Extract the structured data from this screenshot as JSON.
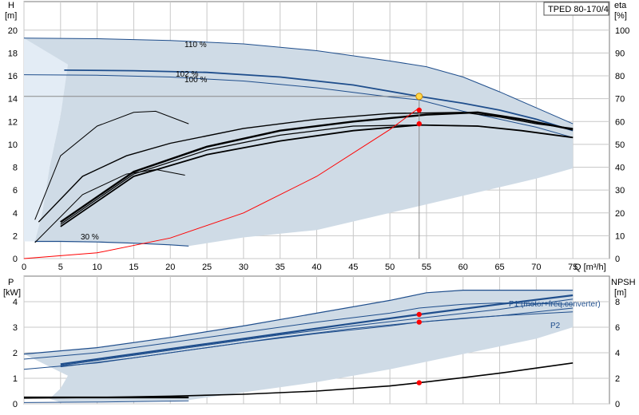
{
  "model_label": "TPED 80-170/4",
  "colors": {
    "band": "#cfdbe6",
    "band_light": "#e3ecf5",
    "blue": "#1f4e8c",
    "black": "#000000",
    "red": "#ff0000",
    "duty_fill": "#ffd84a",
    "grid": "#c8c8c8"
  },
  "chart_data": [
    {
      "type": "line",
      "panel": "head-efficiency",
      "x_axis": {
        "ticks": [
          "0",
          "5",
          "10",
          "15",
          "20",
          "25",
          "30",
          "35",
          "40",
          "45",
          "50",
          "55",
          "60",
          "65",
          "70",
          "75"
        ],
        "range": [
          0,
          80
        ],
        "label": "Q [m³/h]"
      },
      "y_left": {
        "title": "H",
        "unit": "[m]",
        "ticks": [
          "0",
          "2",
          "4",
          "6",
          "8",
          "10",
          "12",
          "14",
          "16",
          "18",
          "20"
        ],
        "range": [
          0,
          22.5
        ]
      },
      "y_right": {
        "title": "eta",
        "unit": "[%]",
        "ticks": [
          "0",
          "10",
          "20",
          "30",
          "40",
          "50",
          "60",
          "70",
          "80",
          "90",
          "100"
        ],
        "range": [
          0,
          112.5
        ]
      },
      "head_curves": [
        {
          "label": "110 %",
          "points": [
            [
              0,
              19.3
            ],
            [
              10,
              19.25
            ],
            [
              20,
              19.1
            ],
            [
              30,
              18.8
            ],
            [
              40,
              18.2
            ],
            [
              50,
              17.3
            ],
            [
              55,
              16.8
            ],
            [
              60,
              15.9
            ],
            [
              65,
              14.6
            ],
            [
              70,
              13.2
            ],
            [
              75,
              11.8
            ]
          ]
        },
        {
          "label": "102 %",
          "points": [
            [
              5.5,
              16.5
            ],
            [
              15,
              16.45
            ],
            [
              25,
              16.3
            ],
            [
              35,
              15.9
            ],
            [
              45,
              15.2
            ],
            [
              54,
              14.2
            ],
            [
              60,
              13.6
            ],
            [
              65,
              13.0
            ],
            [
              70,
              12.2
            ],
            [
              75,
              11.2
            ]
          ]
        },
        {
          "label": "100 %",
          "points": [
            [
              0,
              16.1
            ],
            [
              10,
              16.05
            ],
            [
              20,
              15.9
            ],
            [
              30,
              15.55
            ],
            [
              40,
              14.95
            ],
            [
              50,
              14.15
            ],
            [
              54,
              13.9
            ],
            [
              60,
              12.9
            ],
            [
              65,
              12.2
            ],
            [
              70,
              11.5
            ],
            [
              75,
              10.6
            ]
          ]
        },
        {
          "label": "30 %",
          "points": [
            [
              1.5,
              1.5
            ],
            [
              5,
              1.5
            ],
            [
              10,
              1.45
            ],
            [
              15,
              1.35
            ],
            [
              20,
              1.2
            ],
            [
              22.5,
              1.1
            ]
          ]
        }
      ],
      "efficiency_curves": [
        {
          "points": [
            [
              2,
              16
            ],
            [
              8,
              36
            ],
            [
              14,
              45
            ],
            [
              20,
              50.5
            ],
            [
              30,
              57
            ],
            [
              40,
              61
            ],
            [
              50,
              63.5
            ],
            [
              60,
              64
            ],
            [
              65,
              62
            ],
            [
              70,
              59
            ],
            [
              75,
              57
            ]
          ]
        },
        {
          "points": [
            [
              5,
              16
            ],
            [
              15,
              38
            ],
            [
              25,
              49
            ],
            [
              35,
              56
            ],
            [
              45,
              60
            ],
            [
              55,
              63
            ],
            [
              62,
              64
            ],
            [
              68,
              61
            ],
            [
              75,
              56.5
            ]
          ]
        },
        {
          "points": [
            [
              5,
              15
            ],
            [
              15,
              37
            ],
            [
              25,
              47.5
            ],
            [
              35,
              54
            ],
            [
              45,
              58
            ],
            [
              54,
              58.5
            ],
            [
              62,
              58
            ],
            [
              68,
              56
            ],
            [
              75,
              53
            ]
          ]
        },
        {
          "points": [
            [
              5,
              14
            ],
            [
              15,
              36
            ],
            [
              25,
              45.5
            ],
            [
              35,
              51.5
            ],
            [
              45,
              56
            ],
            [
              54,
              58.5
            ],
            [
              62,
              58
            ],
            [
              68,
              56
            ],
            [
              75,
              53
            ]
          ]
        },
        {
          "points": [
            [
              1.5,
              7
            ],
            [
              8,
              28
            ],
            [
              14,
              37
            ],
            [
              18,
              39
            ],
            [
              22,
              36.5
            ]
          ]
        },
        {
          "points": [
            [
              1.5,
              17
            ],
            [
              5,
              45
            ],
            [
              10,
              58
            ],
            [
              15,
              64
            ],
            [
              18,
              64.5
            ],
            [
              22.5,
              59
            ]
          ]
        }
      ],
      "system_curve": {
        "points": [
          [
            0,
            0
          ],
          [
            10,
            0.5
          ],
          [
            20,
            1.8
          ],
          [
            30,
            4.0
          ],
          [
            40,
            7.2
          ],
          [
            50,
            11.3
          ],
          [
            54,
            13.2
          ]
        ]
      },
      "operating_range": {
        "upper": [
          [
            0,
            19.3
          ],
          [
            10,
            19.25
          ],
          [
            20,
            19.1
          ],
          [
            30,
            18.8
          ],
          [
            40,
            18.2
          ],
          [
            50,
            17.3
          ],
          [
            55,
            16.8
          ],
          [
            60,
            15.9
          ],
          [
            65,
            14.6
          ],
          [
            70,
            13.2
          ],
          [
            75,
            11.8
          ]
        ],
        "lower": [
          [
            75,
            7.9
          ],
          [
            70,
            7.0
          ],
          [
            60,
            5.5
          ],
          [
            50,
            4.0
          ],
          [
            40,
            2.5
          ],
          [
            30,
            1.85
          ],
          [
            22.5,
            1.1
          ],
          [
            15,
            1.35
          ],
          [
            10,
            1.45
          ],
          [
            5,
            1.5
          ],
          [
            1.5,
            1.5
          ],
          [
            2.5,
            4
          ],
          [
            3.5,
            8
          ],
          [
            5,
            12.5
          ],
          [
            6,
            17
          ]
        ]
      },
      "duty_point": {
        "q": 54,
        "h": 14.2
      },
      "markers": [
        {
          "q": 54,
          "h": 13.0
        },
        {
          "q": 54,
          "h": 11.8
        }
      ]
    },
    {
      "type": "line",
      "panel": "power-npsh",
      "x_axis": {
        "range": [
          0,
          80
        ]
      },
      "y_left": {
        "title": "P",
        "unit": "[kW]",
        "ticks": [
          "0",
          "1",
          "2",
          "3",
          "4"
        ],
        "range": [
          0,
          5
        ]
      },
      "y_right": {
        "title": "NPSH",
        "unit": "[m]",
        "ticks": [
          "0",
          "2",
          "4",
          "6",
          "8"
        ],
        "range": [
          0,
          10
        ]
      },
      "power_curves": [
        {
          "label": "P1 (motor+freq.converter)",
          "points": [
            [
              0,
              1.95
            ],
            [
              10,
              2.2
            ],
            [
              20,
              2.6
            ],
            [
              30,
              3.05
            ],
            [
              40,
              3.55
            ],
            [
              50,
              4.05
            ],
            [
              55,
              4.35
            ],
            [
              60,
              4.45
            ],
            [
              65,
              4.45
            ],
            [
              75,
              4.45
            ]
          ]
        },
        {
          "label": "",
          "points": [
            [
              0,
              1.75
            ],
            [
              10,
              2.0
            ],
            [
              20,
              2.4
            ],
            [
              30,
              2.8
            ],
            [
              40,
              3.2
            ],
            [
              50,
              3.55
            ],
            [
              54,
              3.75
            ],
            [
              60,
              3.9
            ],
            [
              65,
              3.95
            ],
            [
              75,
              3.9
            ]
          ]
        },
        {
          "label": "",
          "points": [
            [
              5,
              1.55
            ],
            [
              15,
              1.95
            ],
            [
              25,
              2.35
            ],
            [
              35,
              2.75
            ],
            [
              45,
              3.15
            ],
            [
              54,
              3.5
            ],
            [
              65,
              3.9
            ],
            [
              75,
              4.25
            ]
          ]
        },
        {
          "label": "",
          "points": [
            [
              5,
              1.5
            ],
            [
              15,
              1.9
            ],
            [
              25,
              2.3
            ],
            [
              35,
              2.7
            ],
            [
              45,
              3.05
            ],
            [
              54,
              3.35
            ],
            [
              65,
              3.7
            ],
            [
              75,
              4.1
            ]
          ]
        },
        {
          "label": "",
          "points": [
            [
              5,
              1.45
            ],
            [
              15,
              1.8
            ],
            [
              25,
              2.2
            ],
            [
              35,
              2.6
            ],
            [
              45,
              2.95
            ],
            [
              54,
              3.2
            ],
            [
              65,
              3.45
            ],
            [
              75,
              3.75
            ]
          ]
        },
        {
          "label": "P2",
          "points": [
            [
              0,
              1.35
            ],
            [
              10,
              1.6
            ],
            [
              20,
              2.0
            ],
            [
              30,
              2.4
            ],
            [
              40,
              2.75
            ],
            [
              50,
              3.05
            ],
            [
              54,
              3.2
            ],
            [
              60,
              3.35
            ],
            [
              65,
              3.45
            ],
            [
              75,
              3.6
            ]
          ]
        },
        {
          "label": "",
          "points": [
            [
              0,
              0.25
            ],
            [
              10,
              0.25
            ],
            [
              22.5,
              0.25
            ]
          ]
        },
        {
          "label": "",
          "points": [
            [
              0,
              0.05
            ],
            [
              10,
              0.07
            ],
            [
              22.5,
              0.12
            ]
          ]
        }
      ],
      "npsh_curve": {
        "points": [
          [
            0,
            0.45
          ],
          [
            10,
            0.5
          ],
          [
            20,
            0.6
          ],
          [
            30,
            0.75
          ],
          [
            40,
            1.0
          ],
          [
            50,
            1.4
          ],
          [
            54,
            1.65
          ],
          [
            60,
            2.05
          ],
          [
            65,
            2.4
          ],
          [
            70,
            2.8
          ],
          [
            75,
            3.2
          ]
        ]
      },
      "power_band": {
        "upper": [
          [
            0,
            1.95
          ],
          [
            10,
            2.2
          ],
          [
            20,
            2.6
          ],
          [
            30,
            3.05
          ],
          [
            40,
            3.55
          ],
          [
            50,
            4.05
          ],
          [
            55,
            4.35
          ],
          [
            60,
            4.45
          ],
          [
            65,
            4.45
          ],
          [
            75,
            4.45
          ]
        ],
        "lower": [
          [
            75,
            3.0
          ],
          [
            70,
            2.55
          ],
          [
            60,
            1.95
          ],
          [
            50,
            1.35
          ],
          [
            40,
            0.85
          ],
          [
            30,
            0.45
          ],
          [
            22.5,
            0.15
          ],
          [
            15,
            0.1
          ],
          [
            10,
            0.08
          ],
          [
            5,
            0.06
          ],
          [
            3.5,
            0.2
          ],
          [
            5,
            0.6
          ],
          [
            6,
            1.1
          ]
        ]
      },
      "markers": [
        {
          "q": 54,
          "p": 3.5
        },
        {
          "q": 54,
          "p": 3.2
        },
        {
          "q": 54,
          "npsh": 1.65
        }
      ]
    }
  ]
}
